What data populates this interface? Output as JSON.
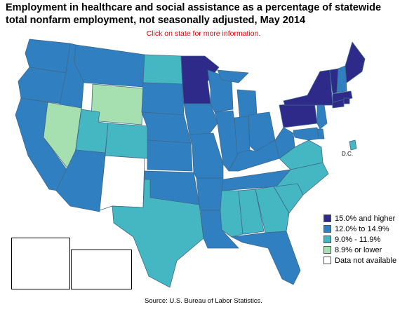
{
  "title": "Employment in healthcare and social assistance as a percentage of statewide total nonfarm employment, not seasonally adjusted, May 2014",
  "subtitle": "Click on state for more information.",
  "source": "Source:  U.S. Bureau of Labor Statistics.",
  "dc_label": "D.C.",
  "colors": {
    "cat1": "#2e2a8a",
    "cat2": "#2f7fc1",
    "cat3": "#45b7c3",
    "cat4": "#a6e0b0",
    "cat5": "#ffffff",
    "border": "#3f6a8a"
  },
  "legend": [
    {
      "label": "15.0% and higher",
      "category": "cat1"
    },
    {
      "label": "12.0% to 14.9%",
      "category": "cat2"
    },
    {
      "label": "9.0% - 11.9%",
      "category": "cat3"
    },
    {
      "label": "8.9% or lower",
      "category": "cat4"
    },
    {
      "label": "Data not available",
      "category": "cat5"
    }
  ],
  "states": {
    "WA": "cat2",
    "OR": "cat2",
    "CA": "cat2",
    "ID": "cat2",
    "NV": "cat4",
    "MT": "cat2",
    "WY": "cat4",
    "UT": "cat3",
    "AZ": "cat2",
    "CO": "cat3",
    "NM": "cat5",
    "ND": "cat3",
    "SD": "cat2",
    "NE": "cat2",
    "KS": "cat2",
    "OK": "cat2",
    "TX": "cat3",
    "MN": "cat1",
    "IA": "cat2",
    "MO": "cat2",
    "AR": "cat2",
    "LA": "cat2",
    "WI": "cat2",
    "IL": "cat2",
    "MI": "cat2",
    "IN": "cat2",
    "OH": "cat2",
    "KY": "cat2",
    "TN": "cat2",
    "MS": "cat3",
    "AL": "cat3",
    "GA": "cat3",
    "FL": "cat2",
    "SC": "cat3",
    "NC": "cat3",
    "VA": "cat3",
    "WV": "cat2",
    "PA": "cat1",
    "NY": "cat1",
    "VT": "cat1",
    "NH": "cat2",
    "ME": "cat1",
    "MA": "cat1",
    "RI": "cat1",
    "CT": "cat1",
    "NJ": "cat2",
    "DE": "cat2",
    "MD": "cat2",
    "DC": "cat3",
    "AK": "cat2",
    "HI": "cat3"
  }
}
